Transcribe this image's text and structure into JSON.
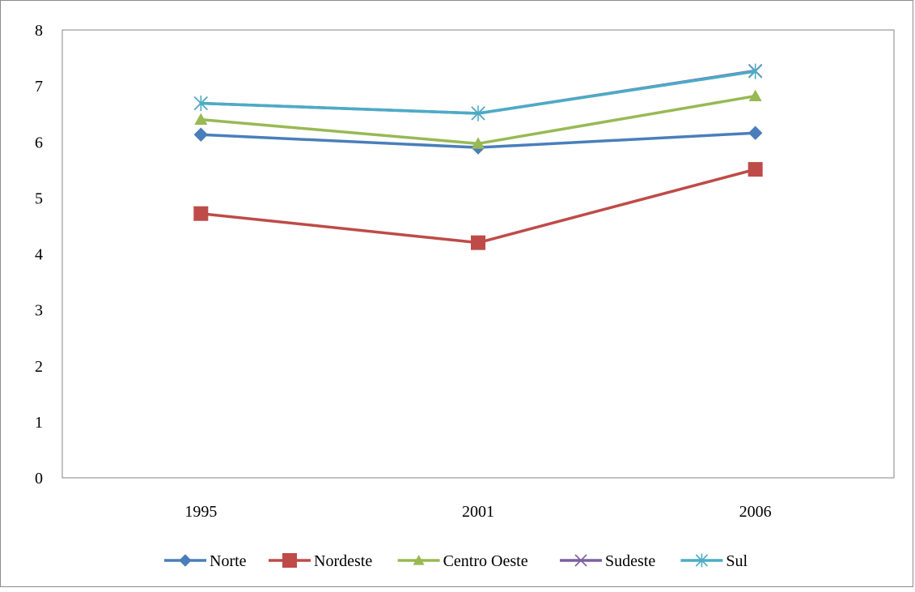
{
  "chart_data": {
    "type": "line",
    "x": [
      "1995",
      "2001",
      "2006"
    ],
    "ylim": [
      0,
      8
    ],
    "yticks": [
      "0",
      "1",
      "2",
      "3",
      "4",
      "5",
      "6",
      "7",
      "8"
    ],
    "grid": false,
    "legend_position": "bottom",
    "series": [
      {
        "name": "Norte",
        "values": [
          6.13,
          5.9,
          6.16
        ],
        "color": "#4a7ebb",
        "marker": "diamond"
      },
      {
        "name": "Nordeste",
        "values": [
          4.72,
          4.2,
          5.51
        ],
        "color": "#be4b48",
        "marker": "square"
      },
      {
        "name": "Centro Oeste",
        "values": [
          6.4,
          5.97,
          6.82
        ],
        "color": "#98b954",
        "marker": "triangle"
      },
      {
        "name": "Sudeste",
        "values": [
          6.69,
          6.51,
          7.27
        ],
        "color": "#7d60a0",
        "marker": "x"
      },
      {
        "name": "Sul",
        "values": [
          6.69,
          6.51,
          7.26
        ],
        "color": "#4bacc6",
        "marker": "asterisk"
      }
    ]
  }
}
